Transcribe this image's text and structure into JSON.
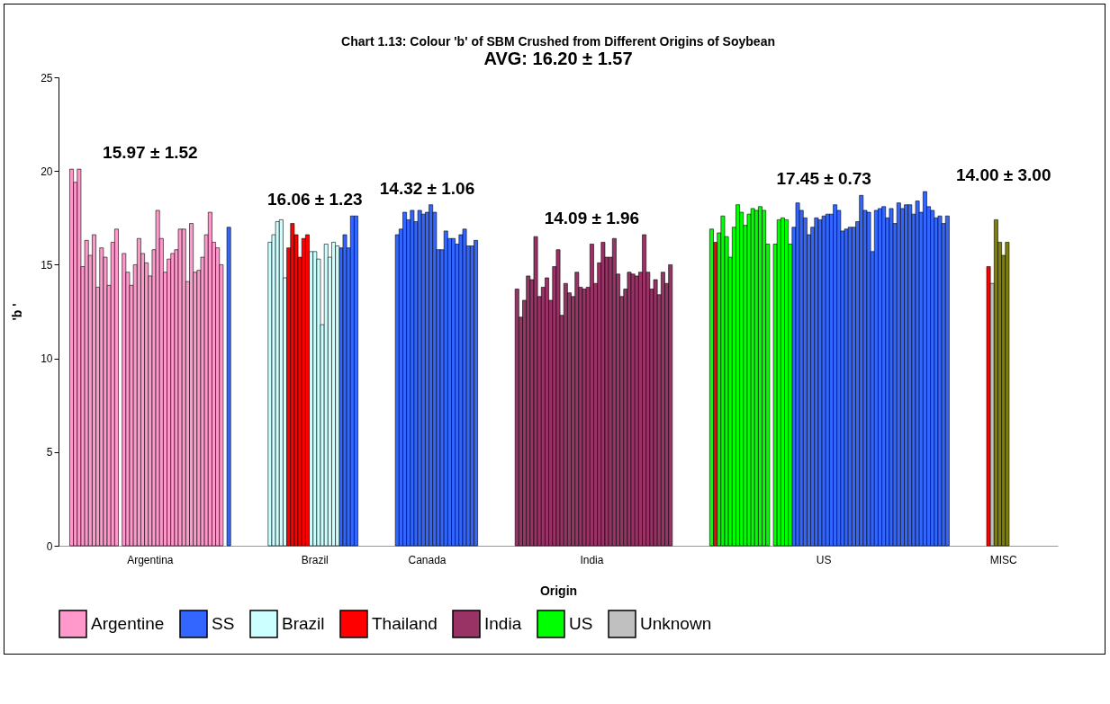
{
  "chart_data": {
    "type": "bar",
    "title": "Chart 1.13: Colour 'b' of SBM Crushed from Different Origins of Soybean",
    "subtitle": "AVG: 16.20 ± 1.57",
    "xlabel": "Origin",
    "ylabel": "'b '",
    "categories": [
      null,
      null,
      null,
      null,
      null,
      null,
      null,
      null,
      null,
      null,
      null,
      null,
      null,
      null,
      null,
      null,
      null,
      null,
      null,
      null,
      null,
      null,
      null,
      null,
      "Argentina",
      null,
      null,
      null,
      null,
      null,
      null,
      null,
      null,
      null,
      null,
      null,
      null,
      null,
      null,
      null,
      null,
      null,
      null,
      null,
      null,
      null,
      null,
      null,
      null,
      null,
      null,
      null,
      null,
      null,
      null,
      null,
      null,
      null,
      null,
      null,
      null,
      null,
      null,
      null,
      null,
      null,
      null,
      null,
      "Brazil",
      null,
      null,
      null,
      null,
      null,
      null,
      null,
      null,
      null,
      null,
      null,
      null,
      null,
      null,
      null,
      null,
      null,
      null,
      null,
      null,
      null,
      null,
      null,
      null,
      null,
      null,
      null,
      null,
      null,
      "Canada",
      null,
      null,
      null,
      null,
      null,
      null,
      null,
      null,
      null,
      null,
      null,
      null,
      null,
      null,
      null,
      null,
      null,
      null,
      null,
      null,
      null,
      null,
      null,
      null,
      null,
      null,
      null,
      null,
      null,
      null,
      null,
      null,
      null,
      null,
      null,
      null,
      null,
      null,
      null,
      null,
      null,
      null,
      null,
      "India",
      null,
      null,
      null,
      null,
      null,
      null,
      null,
      null,
      null,
      null,
      null,
      null,
      null,
      null,
      null,
      null,
      null,
      null,
      null,
      null,
      null,
      null,
      null,
      null,
      null,
      null,
      null,
      null,
      null,
      null,
      null,
      null,
      null,
      null,
      null,
      null,
      null,
      null,
      null,
      null,
      null,
      null,
      null,
      null,
      null,
      null,
      null,
      null,
      null,
      null,
      null,
      null,
      null,
      null,
      null,
      null,
      null,
      null,
      null,
      null,
      null,
      "US",
      null,
      null,
      null,
      null,
      null,
      null,
      null,
      null,
      null,
      null,
      null,
      null,
      null,
      null,
      null,
      null,
      null,
      null,
      null,
      null,
      null,
      null,
      null,
      null,
      null,
      null,
      null,
      null,
      null,
      null,
      null,
      null,
      null,
      null,
      null,
      null,
      null,
      null,
      null,
      null,
      null,
      null,
      null,
      null,
      null,
      null,
      null,
      "MISC",
      null,
      null,
      null,
      null,
      null,
      null,
      null,
      null,
      null,
      null,
      null,
      null,
      null,
      null
    ],
    "ylim": [
      0,
      25
    ],
    "yticks": [
      0,
      5,
      10,
      15,
      20,
      25
    ],
    "grid": false,
    "legend": "bottom",
    "series": [
      {
        "name": "Argentine",
        "color": "#ff99cc",
        "values": [
          null,
          null,
          null,
          20.1,
          19.4,
          20.1,
          14.9,
          16.3,
          15.5,
          16.6,
          13.8,
          15.9,
          15.4,
          13.9,
          16.2,
          16.9,
          null,
          15.6,
          14.6,
          13.9,
          15.0,
          16.4,
          15.6,
          15.1,
          14.4,
          15.8,
          17.9,
          16.4,
          14.6,
          15.3,
          15.6,
          15.8,
          16.9,
          16.9,
          14.1,
          17.2,
          14.6,
          14.7,
          15.4,
          16.6,
          17.8,
          16.2,
          15.9,
          15.0,
          null,
          null,
          null,
          null,
          null,
          null,
          null,
          null,
          null,
          null,
          null,
          null,
          null,
          null,
          null,
          null,
          null,
          null,
          null,
          null,
          null,
          null,
          null,
          null,
          null,
          null,
          null,
          null,
          null,
          null,
          null,
          null,
          null,
          null,
          null,
          null,
          null,
          null,
          null,
          null,
          null,
          null,
          null,
          null,
          null,
          null,
          null,
          null,
          null,
          null,
          null,
          null,
          null,
          null,
          null,
          null,
          null,
          null,
          null,
          null,
          null,
          null,
          null,
          null,
          null,
          null,
          null,
          null,
          null,
          null,
          null,
          null,
          null,
          null,
          null,
          null,
          null,
          null,
          null,
          null,
          null,
          null,
          null,
          null,
          null,
          null,
          null,
          null,
          null,
          null,
          null,
          null,
          null,
          null,
          null,
          null,
          null,
          null,
          null,
          null,
          null,
          null,
          null,
          null,
          null,
          null,
          null,
          null,
          null,
          null,
          null,
          null,
          null,
          null,
          null,
          null,
          null,
          null,
          null,
          null,
          null,
          null,
          null,
          null,
          null,
          null,
          null,
          null,
          null,
          null,
          null,
          null,
          null,
          null,
          null,
          null,
          null,
          null,
          null,
          null,
          null,
          null,
          null,
          null,
          null,
          null,
          null,
          null,
          null,
          null,
          null,
          null,
          null,
          null,
          null,
          null,
          null,
          null,
          null,
          null,
          null,
          null,
          null,
          null,
          null,
          null,
          null,
          null,
          null,
          null,
          null,
          null,
          null,
          null,
          null,
          null,
          null,
          null,
          null,
          null,
          null,
          null,
          null,
          null,
          null,
          null,
          null,
          null,
          null,
          null,
          null,
          null,
          null,
          null,
          null,
          null,
          null,
          null,
          null,
          null,
          null,
          null,
          null,
          null,
          null,
          null,
          null,
          null,
          null,
          null,
          null,
          null,
          null,
          null,
          null,
          null,
          null,
          null,
          null,
          null,
          null,
          null,
          null
        ]
      },
      {
        "name": "SS",
        "color": "#3366ff",
        "values": [
          null,
          null,
          null,
          null,
          null,
          null,
          null,
          null,
          null,
          null,
          null,
          null,
          null,
          null,
          null,
          null,
          null,
          null,
          null,
          null,
          null,
          null,
          null,
          null,
          null,
          null,
          null,
          null,
          null,
          null,
          null,
          null,
          null,
          null,
          null,
          null,
          null,
          null,
          null,
          null,
          null,
          null,
          null,
          null,
          null,
          17.0,
          null,
          null,
          null,
          null,
          null,
          null,
          null,
          null,
          null,
          null,
          null,
          null,
          null,
          null,
          null,
          null,
          null,
          null,
          null,
          null,
          null,
          null,
          null,
          null,
          null,
          null,
          null,
          null,
          null,
          15.9,
          16.6,
          15.9,
          17.6,
          17.6,
          null,
          null,
          null,
          null,
          null,
          null,
          null,
          null,
          null,
          null,
          16.6,
          16.9,
          17.8,
          17.4,
          17.9,
          17.3,
          17.9,
          17.7,
          17.8,
          18.2,
          17.8,
          15.8,
          15.8,
          16.8,
          16.4,
          16.4,
          16.1,
          16.6,
          16.9,
          16.0,
          16.0,
          16.3,
          null,
          null,
          null,
          null,
          null,
          null,
          null,
          null,
          null,
          null,
          null,
          null,
          null,
          null,
          null,
          null,
          null,
          null,
          null,
          null,
          null,
          null,
          null,
          null,
          null,
          null,
          null,
          null,
          null,
          null,
          null,
          null,
          null,
          null,
          null,
          null,
          null,
          null,
          null,
          null,
          null,
          null,
          null,
          null,
          null,
          null,
          null,
          null,
          null,
          null,
          null,
          null,
          null,
          null,
          null,
          null,
          null,
          null,
          null,
          null,
          null,
          null,
          null,
          null,
          null,
          null,
          null,
          null,
          null,
          null,
          null,
          null,
          null,
          null,
          null,
          null,
          null,
          null,
          null,
          null,
          null,
          null,
          null,
          null,
          17.0,
          18.3,
          17.9,
          17.5,
          16.6,
          17.0,
          17.5,
          17.4,
          17.6,
          17.7,
          17.7,
          18.2,
          17.9,
          16.8,
          16.9,
          17.0,
          17.0,
          17.3,
          18.7,
          17.9,
          17.8,
          15.7,
          17.9,
          18.0,
          18.1,
          17.5,
          18.0,
          17.2,
          18.3,
          18.0,
          18.2,
          18.2,
          17.7,
          18.4,
          17.8,
          18.9,
          18.1,
          17.9,
          17.5,
          17.6,
          17.2,
          17.6,
          null,
          null,
          null,
          null,
          null,
          null,
          null,
          null,
          null,
          null,
          null,
          null,
          null,
          null,
          null,
          null,
          null,
          null,
          null,
          null,
          null,
          null,
          null,
          null,
          null,
          null,
          null,
          null,
          null
        ]
      },
      {
        "name": "Brazil",
        "color": "#ccffff",
        "values": [
          null,
          null,
          null,
          null,
          null,
          null,
          null,
          null,
          null,
          null,
          null,
          null,
          null,
          null,
          null,
          null,
          null,
          null,
          null,
          null,
          null,
          null,
          null,
          null,
          null,
          null,
          null,
          null,
          null,
          null,
          null,
          null,
          null,
          null,
          null,
          null,
          null,
          null,
          null,
          null,
          null,
          null,
          null,
          null,
          null,
          null,
          null,
          null,
          null,
          null,
          null,
          null,
          null,
          null,
          null,
          null,
          16.2,
          16.6,
          17.3,
          17.4,
          14.3,
          null,
          null,
          null,
          null,
          null,
          null,
          15.7,
          15.7,
          15.3,
          11.8,
          16.1,
          15.4,
          16.2,
          16.0,
          null,
          null,
          null,
          null,
          null,
          null,
          null,
          null,
          null,
          null,
          null,
          null,
          null,
          null,
          null,
          null,
          null,
          null,
          null,
          null,
          null,
          null,
          null,
          null,
          null,
          null,
          null,
          null,
          null,
          null,
          null,
          null,
          null,
          null,
          null,
          null,
          null,
          null,
          null,
          null,
          null,
          null,
          null,
          null,
          null,
          null,
          null,
          null,
          null,
          null,
          null,
          null,
          null,
          null,
          null,
          null,
          null,
          null,
          null,
          null,
          null,
          null,
          null,
          null,
          null,
          null,
          null,
          null,
          null,
          null,
          null,
          null,
          null,
          null,
          null,
          null,
          null,
          null,
          null,
          null,
          null,
          null,
          null,
          null,
          null,
          null,
          null,
          null,
          null,
          null,
          null,
          null,
          null,
          null,
          null,
          null,
          null,
          null,
          null,
          null,
          null,
          null,
          null,
          null,
          null,
          null,
          null,
          null,
          null,
          null,
          null,
          null,
          null,
          null,
          null,
          null,
          null,
          null,
          null,
          null,
          null,
          null,
          null,
          null,
          null,
          null,
          null,
          null,
          null,
          null,
          null,
          null,
          null,
          null,
          null,
          null,
          null,
          null,
          null,
          null,
          null,
          null,
          null,
          null,
          null,
          null,
          null,
          null,
          null,
          null,
          null,
          null,
          null,
          null,
          null,
          null,
          null,
          null,
          null,
          null,
          null,
          null,
          null,
          null,
          null,
          null,
          null,
          null,
          null,
          null,
          null,
          null,
          null,
          null,
          null,
          null,
          null,
          null,
          null,
          null,
          null,
          null,
          null,
          null,
          null,
          null,
          null,
          null,
          null,
          null,
          null,
          null
        ]
      },
      {
        "name": "Thailand",
        "color": "#ff0000",
        "values": [
          null,
          null,
          null,
          null,
          null,
          null,
          null,
          null,
          null,
          null,
          null,
          null,
          null,
          null,
          null,
          null,
          null,
          null,
          null,
          null,
          null,
          null,
          null,
          null,
          null,
          null,
          null,
          null,
          null,
          null,
          null,
          null,
          null,
          null,
          null,
          null,
          null,
          null,
          null,
          null,
          null,
          null,
          null,
          null,
          null,
          null,
          null,
          null,
          null,
          null,
          null,
          null,
          null,
          null,
          null,
          null,
          null,
          null,
          null,
          null,
          null,
          15.9,
          17.2,
          16.6,
          15.4,
          16.4,
          16.6,
          null,
          null,
          null,
          null,
          null,
          null,
          null,
          null,
          null,
          null,
          null,
          null,
          null,
          null,
          null,
          null,
          null,
          null,
          null,
          null,
          null,
          null,
          null,
          null,
          null,
          null,
          null,
          null,
          null,
          null,
          null,
          null,
          null,
          null,
          null,
          null,
          null,
          null,
          null,
          null,
          null,
          null,
          null,
          null,
          null,
          null,
          null,
          null,
          null,
          null,
          null,
          null,
          null,
          null,
          null,
          null,
          null,
          null,
          null,
          null,
          null,
          null,
          null,
          null,
          null,
          null,
          null,
          null,
          null,
          null,
          null,
          null,
          null,
          null,
          null,
          null,
          null,
          null,
          null,
          null,
          null,
          null,
          null,
          null,
          null,
          null,
          null,
          null,
          null,
          null,
          null,
          null,
          null,
          null,
          null,
          null,
          null,
          null,
          null,
          null,
          null,
          null,
          null,
          null,
          null,
          null,
          null,
          null,
          16.2,
          null,
          null,
          null,
          null,
          null,
          null,
          null,
          null,
          null,
          null,
          null,
          null,
          null,
          null,
          null,
          null,
          null,
          null,
          null,
          null,
          null,
          null,
          null,
          null,
          null,
          null,
          null,
          null,
          null,
          null,
          null,
          null,
          null,
          null,
          null,
          null,
          null,
          null,
          null,
          null,
          null,
          null,
          null,
          null,
          null,
          null,
          null,
          null,
          null,
          null,
          null,
          null,
          null,
          null,
          null,
          null,
          null,
          null,
          null,
          null,
          null,
          null,
          null,
          null,
          null,
          null,
          null,
          null,
          null,
          null,
          null,
          null,
          14.9,
          null,
          null,
          null,
          null,
          null,
          null,
          null,
          null,
          null,
          null,
          null,
          null,
          null,
          null,
          null,
          null,
          null,
          null
        ]
      },
      {
        "name": "India",
        "color": "#993366",
        "values": [
          null,
          null,
          null,
          null,
          null,
          null,
          null,
          null,
          null,
          null,
          null,
          null,
          null,
          null,
          null,
          null,
          null,
          null,
          null,
          null,
          null,
          null,
          null,
          null,
          null,
          null,
          null,
          null,
          null,
          null,
          null,
          null,
          null,
          null,
          null,
          null,
          null,
          null,
          null,
          null,
          null,
          null,
          null,
          null,
          null,
          null,
          null,
          null,
          null,
          null,
          null,
          null,
          null,
          null,
          null,
          null,
          null,
          null,
          null,
          null,
          null,
          null,
          null,
          null,
          null,
          null,
          null,
          null,
          null,
          null,
          null,
          null,
          null,
          null,
          null,
          null,
          null,
          null,
          null,
          null,
          null,
          null,
          null,
          null,
          null,
          null,
          null,
          null,
          null,
          null,
          null,
          null,
          null,
          null,
          null,
          null,
          null,
          null,
          null,
          null,
          null,
          null,
          null,
          null,
          null,
          null,
          null,
          null,
          null,
          null,
          null,
          null,
          null,
          null,
          null,
          null,
          null,
          null,
          null,
          null,
          null,
          null,
          13.7,
          12.2,
          13.1,
          14.4,
          14.2,
          16.5,
          13.3,
          13.8,
          14.3,
          13.1,
          14.9,
          15.8,
          12.3,
          14.0,
          13.5,
          13.3,
          14.6,
          13.8,
          13.7,
          13.8,
          16.1,
          14.0,
          15.1,
          16.2,
          15.4,
          15.4,
          16.4,
          14.5,
          13.3,
          13.7,
          14.6,
          14.5,
          14.4,
          14.6,
          16.6,
          14.6,
          13.7,
          14.2,
          13.4,
          14.6,
          14.0,
          15.0,
          null,
          null,
          null,
          null,
          null,
          null,
          null,
          null,
          null,
          null,
          null,
          null,
          null,
          null,
          null,
          null,
          null,
          null,
          null,
          null,
          null,
          null,
          null,
          null,
          null,
          null,
          null,
          null,
          null,
          null,
          null,
          null,
          null,
          null,
          null,
          null,
          null,
          null,
          null,
          null,
          null,
          null,
          null,
          null,
          null,
          null,
          null,
          null,
          null,
          null,
          null,
          null,
          null,
          null,
          null,
          null,
          null,
          null,
          null,
          null,
          null,
          null,
          null,
          null,
          null,
          null,
          null,
          null,
          null,
          null,
          null,
          null,
          null,
          null,
          null,
          null,
          null,
          null,
          null,
          null,
          null,
          null,
          null,
          null,
          null,
          null,
          null,
          null,
          null,
          null,
          null,
          null,
          null,
          null,
          null,
          null,
          null,
          null,
          null,
          null,
          null,
          null,
          null
        ]
      },
      {
        "name": "US",
        "color": "#00ff00",
        "values": [
          null,
          null,
          null,
          null,
          null,
          null,
          null,
          null,
          null,
          null,
          null,
          null,
          null,
          null,
          null,
          null,
          null,
          null,
          null,
          null,
          null,
          null,
          null,
          null,
          null,
          null,
          null,
          null,
          null,
          null,
          null,
          null,
          null,
          null,
          null,
          null,
          null,
          null,
          null,
          null,
          null,
          null,
          null,
          null,
          null,
          null,
          null,
          null,
          null,
          null,
          null,
          null,
          null,
          null,
          null,
          null,
          null,
          null,
          null,
          null,
          null,
          null,
          null,
          null,
          null,
          null,
          null,
          null,
          null,
          null,
          null,
          null,
          null,
          null,
          null,
          null,
          null,
          null,
          null,
          null,
          null,
          null,
          null,
          null,
          null,
          null,
          null,
          null,
          null,
          null,
          null,
          null,
          null,
          null,
          null,
          null,
          null,
          null,
          null,
          null,
          null,
          null,
          null,
          null,
          null,
          null,
          null,
          null,
          null,
          null,
          null,
          null,
          null,
          null,
          null,
          null,
          null,
          null,
          null,
          null,
          null,
          null,
          null,
          null,
          null,
          null,
          null,
          null,
          null,
          null,
          null,
          null,
          null,
          null,
          null,
          null,
          null,
          null,
          null,
          null,
          null,
          null,
          null,
          null,
          null,
          null,
          null,
          null,
          null,
          null,
          null,
          null,
          null,
          null,
          null,
          null,
          null,
          null,
          null,
          null,
          null,
          null,
          null,
          null,
          null,
          null,
          null,
          null,
          null,
          null,
          null,
          null,
          null,
          null,
          16.9,
          null,
          16.7,
          17.6,
          16.5,
          15.4,
          17.0,
          18.2,
          17.8,
          17.1,
          17.7,
          18.0,
          17.9,
          18.1,
          17.9,
          16.1,
          null,
          16.1,
          17.4,
          17.5,
          17.4,
          16.1,
          null,
          null,
          null,
          null,
          null,
          null,
          null,
          null,
          null,
          null,
          null,
          null,
          null,
          null,
          null,
          null,
          null,
          null,
          null,
          null,
          null,
          null,
          null,
          null,
          null,
          null,
          null,
          null,
          null,
          null,
          null,
          null,
          null,
          null,
          null,
          null,
          null,
          null,
          null,
          null,
          null,
          null,
          null,
          null,
          null,
          null,
          null,
          null,
          null,
          null,
          null,
          null,
          null,
          null,
          null,
          null,
          null,
          null,
          null,
          null,
          null,
          null,
          null,
          null,
          null,
          null,
          null,
          null,
          null,
          null,
          null
        ]
      },
      {
        "name": "Unknown",
        "color": "#c0c0c0",
        "values": [
          null,
          null,
          null,
          null,
          null,
          null,
          null,
          null,
          null,
          null,
          null,
          null,
          null,
          null,
          null,
          null,
          null,
          null,
          null,
          null,
          null,
          null,
          null,
          null,
          null,
          null,
          null,
          null,
          null,
          null,
          null,
          null,
          null,
          null,
          null,
          null,
          null,
          null,
          null,
          null,
          null,
          null,
          null,
          null,
          null,
          null,
          null,
          null,
          null,
          null,
          null,
          null,
          null,
          null,
          null,
          null,
          null,
          null,
          null,
          null,
          null,
          null,
          null,
          null,
          null,
          null,
          null,
          null,
          null,
          null,
          null,
          null,
          null,
          null,
          null,
          null,
          null,
          null,
          null,
          null,
          null,
          null,
          null,
          null,
          null,
          null,
          null,
          null,
          null,
          null,
          null,
          null,
          null,
          null,
          null,
          null,
          null,
          null,
          null,
          null,
          null,
          null,
          null,
          null,
          null,
          null,
          null,
          null,
          null,
          null,
          null,
          null,
          null,
          null,
          null,
          null,
          null,
          null,
          null,
          null,
          null,
          null,
          null,
          null,
          null,
          null,
          null,
          null,
          null,
          null,
          null,
          null,
          null,
          null,
          null,
          null,
          null,
          null,
          null,
          null,
          null,
          null,
          null,
          null,
          null,
          null,
          null,
          null,
          null,
          null,
          null,
          null,
          null,
          null,
          null,
          null,
          null,
          null,
          null,
          null,
          null,
          null,
          null,
          null,
          null,
          null,
          null,
          null,
          null,
          null,
          null,
          null,
          null,
          null,
          null,
          null,
          null,
          null,
          null,
          null,
          null,
          null,
          null,
          null,
          null,
          null,
          null,
          null,
          null,
          null,
          null,
          null,
          null,
          null,
          null,
          null,
          null,
          null,
          null,
          null,
          null,
          null,
          null,
          null,
          null,
          null,
          null,
          null,
          null,
          null,
          null,
          null,
          null,
          null,
          null,
          null,
          null,
          null,
          null,
          null,
          null,
          null,
          null,
          null,
          null,
          null,
          null,
          null,
          null,
          null,
          null,
          null,
          null,
          null,
          null,
          null,
          null,
          null,
          null,
          null,
          null,
          null,
          null,
          null,
          null,
          null,
          null,
          null,
          null,
          14.0,
          null,
          null,
          null,
          null,
          null,
          null,
          null,
          null,
          null,
          null,
          null,
          null,
          null,
          null,
          null,
          null,
          null
        ]
      },
      {
        "color": "#808000",
        "values": [
          null,
          null,
          null,
          null,
          null,
          null,
          null,
          null,
          null,
          null,
          null,
          null,
          null,
          null,
          null,
          null,
          null,
          null,
          null,
          null,
          null,
          null,
          null,
          null,
          null,
          null,
          null,
          null,
          null,
          null,
          null,
          null,
          null,
          null,
          null,
          null,
          null,
          null,
          null,
          null,
          null,
          null,
          null,
          null,
          null,
          null,
          null,
          null,
          null,
          null,
          null,
          null,
          null,
          null,
          null,
          null,
          null,
          null,
          null,
          null,
          null,
          null,
          null,
          null,
          null,
          null,
          null,
          null,
          null,
          null,
          null,
          null,
          null,
          null,
          null,
          null,
          null,
          null,
          null,
          null,
          null,
          null,
          null,
          null,
          null,
          null,
          null,
          null,
          null,
          null,
          null,
          null,
          null,
          null,
          null,
          null,
          null,
          null,
          null,
          null,
          null,
          null,
          null,
          null,
          null,
          null,
          null,
          null,
          null,
          null,
          null,
          null,
          null,
          null,
          null,
          null,
          null,
          null,
          null,
          null,
          null,
          null,
          null,
          null,
          null,
          null,
          null,
          null,
          null,
          null,
          null,
          null,
          null,
          null,
          null,
          null,
          null,
          null,
          null,
          null,
          null,
          null,
          null,
          null,
          null,
          null,
          null,
          null,
          null,
          null,
          null,
          null,
          null,
          null,
          null,
          null,
          null,
          null,
          null,
          null,
          null,
          null,
          null,
          null,
          null,
          null,
          null,
          null,
          null,
          null,
          null,
          null,
          null,
          null,
          null,
          null,
          null,
          null,
          null,
          null,
          null,
          null,
          null,
          null,
          null,
          null,
          null,
          null,
          null,
          null,
          null,
          null,
          null,
          null,
          null,
          null,
          null,
          null,
          null,
          null,
          null,
          null,
          null,
          null,
          null,
          null,
          null,
          null,
          null,
          null,
          null,
          null,
          null,
          null,
          null,
          null,
          null,
          null,
          null,
          null,
          null,
          null,
          null,
          null,
          null,
          null,
          null,
          null,
          null,
          null,
          null,
          null,
          null,
          null,
          null,
          null,
          null,
          null,
          null,
          null,
          null,
          null,
          null,
          null,
          null,
          null,
          null,
          null,
          null,
          null,
          17.4,
          16.2,
          15.5,
          16.2,
          null,
          null,
          null,
          null,
          null,
          null,
          null,
          null,
          null,
          null,
          null,
          null,
          null
        ]
      }
    ],
    "annotations": [
      "15.97 ± 1.52",
      "16.06 ± 1.23",
      "14.32 ± 1.06",
      "14.09 ± 1.96",
      "17.45 ± 0.73",
      "14.00 ± 3.00"
    ]
  }
}
